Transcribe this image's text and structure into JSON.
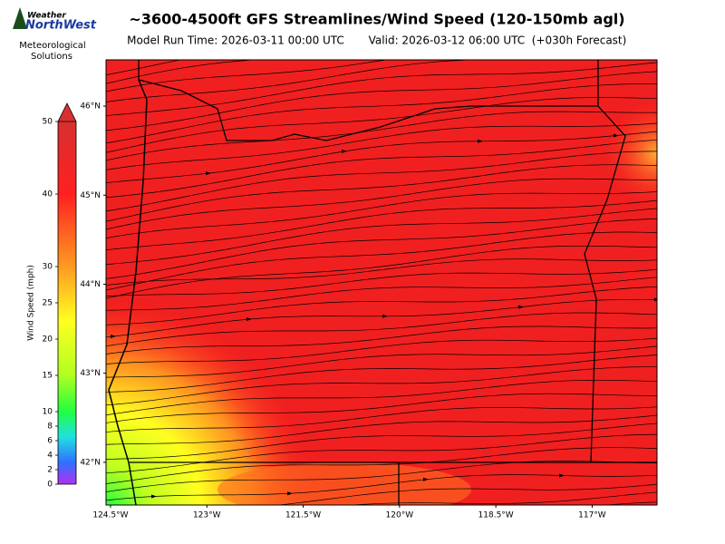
{
  "header": {
    "title": "~3600-4500ft GFS Streamlines/Wind Speed (120-150mb agl)",
    "run_time": "Model Run Time: 2026-03-11 00:00 UTC",
    "valid_time": "Valid: 2026-03-12 06:00 UTC  (+030h Forecast)"
  },
  "logo": {
    "line1": "Weather",
    "line2": "NorthWest",
    "caption1": "Meteorological",
    "caption2": "Solutions"
  },
  "colorbar": {
    "label": "Wind Speed (mph)",
    "lim": [
      0,
      50
    ],
    "ticks": [
      0,
      2,
      4,
      6,
      8,
      10,
      15,
      20,
      25,
      30,
      40,
      50
    ]
  },
  "map": {
    "lon_lim": [
      -124.57,
      -115.99
    ],
    "lat_lim": [
      41.52,
      46.52
    ],
    "lon_ticks": [
      {
        "value": -124.5,
        "label": "124.5°W"
      },
      {
        "value": -123,
        "label": "123°W"
      },
      {
        "value": -121.5,
        "label": "121.5°W"
      },
      {
        "value": -120,
        "label": "120°W"
      },
      {
        "value": -118.5,
        "label": "118.5°W"
      },
      {
        "value": -117,
        "label": "117°W"
      }
    ],
    "lat_ticks": [
      {
        "value": 46,
        "label": "46°N"
      },
      {
        "value": 45,
        "label": "45°N"
      },
      {
        "value": 44,
        "label": "44°N"
      },
      {
        "value": 43,
        "label": "43°N"
      },
      {
        "value": 42,
        "label": "42°N"
      }
    ]
  }
}
